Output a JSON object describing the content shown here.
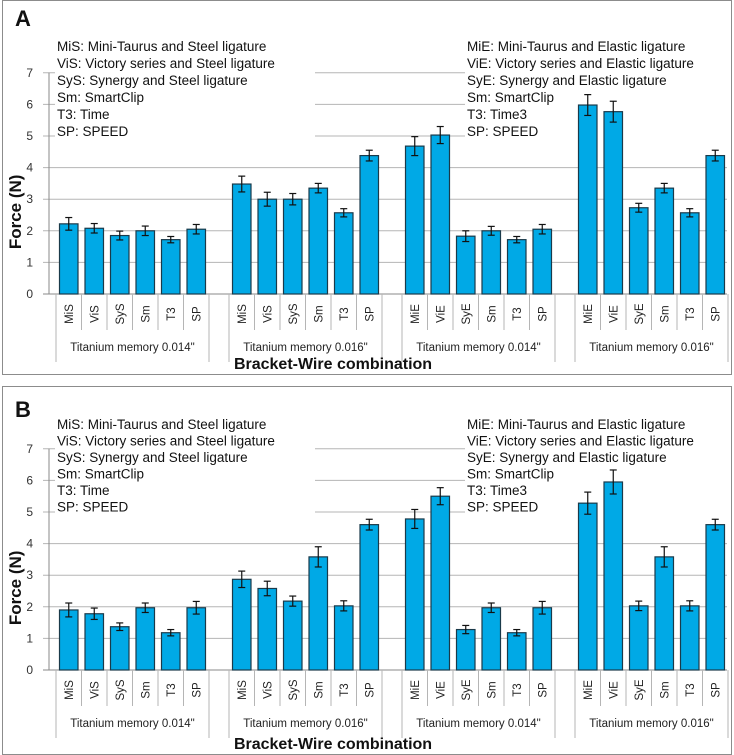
{
  "chart_data": [
    {
      "type": "bar",
      "panel_label": "A",
      "title": "",
      "xlabel": "Bracket-Wire combination",
      "ylabel": "Force (N)",
      "ylim": [
        0,
        7
      ],
      "yticks": [
        "0",
        "1",
        "2",
        "3",
        "4",
        "5",
        "6",
        "7"
      ],
      "grid": true,
      "error_bars": true,
      "bar_color": "#00a9e6",
      "legend_left": [
        "MiS: Mini-Taurus and Steel ligature",
        "ViS: Victory series and Steel ligature",
        "SyS: Synergy and Steel ligature",
        "Sm: SmartClip",
        "T3: Time",
        "SP: SPEED"
      ],
      "legend_right": [
        "MiE: Mini-Taurus and  Elastic ligature",
        "ViE: Victory series and  Elastic ligature",
        "SyE: Synergy and  Elastic ligature",
        "Sm: SmartClip",
        "T3: Time3",
        "SP: SPEED"
      ],
      "groups": [
        {
          "name": "Titanium memory 0.014\"",
          "categories": [
            "MiS",
            "ViS",
            "SyS",
            "Sm",
            "T3",
            "SP"
          ],
          "values": [
            2.22,
            2.08,
            1.85,
            2.0,
            1.72,
            2.05
          ],
          "errors": [
            0.2,
            0.15,
            0.14,
            0.15,
            0.1,
            0.15
          ]
        },
        {
          "name": "Titanium memory 0.016\"",
          "categories": [
            "MiS",
            "ViS",
            "SyS",
            "Sm",
            "T3",
            "SP"
          ],
          "values": [
            3.48,
            3.0,
            3.0,
            3.35,
            2.57,
            4.38
          ],
          "errors": [
            0.25,
            0.22,
            0.18,
            0.15,
            0.13,
            0.17
          ]
        },
        {
          "name": "Titanium memory 0.014\"",
          "categories": [
            "MiE",
            "ViE",
            "SyE",
            "Sm",
            "T3",
            "SP"
          ],
          "values": [
            4.68,
            5.03,
            1.83,
            2.0,
            1.72,
            2.05
          ],
          "errors": [
            0.3,
            0.27,
            0.17,
            0.14,
            0.1,
            0.15
          ]
        },
        {
          "name": "Titanium memory 0.016\"",
          "categories": [
            "MiE",
            "ViE",
            "SyE",
            "Sm",
            "T3",
            "SP"
          ],
          "values": [
            5.98,
            5.77,
            2.73,
            3.35,
            2.57,
            4.38
          ],
          "errors": [
            0.33,
            0.33,
            0.14,
            0.15,
            0.13,
            0.17
          ]
        }
      ]
    },
    {
      "type": "bar",
      "panel_label": "B",
      "title": "",
      "xlabel": "Bracket-Wire combination",
      "ylabel": "Force (N)",
      "ylim": [
        0,
        7
      ],
      "yticks": [
        "0",
        "1",
        "2",
        "3",
        "4",
        "5",
        "6",
        "7"
      ],
      "grid": true,
      "error_bars": true,
      "bar_color": "#00a9e6",
      "legend_left": [
        "MiS: Mini-Taurus and Steel ligature",
        "ViS: Victory series and Steel ligature",
        "SyS: Synergy and Steel ligature",
        "Sm: SmartClip",
        "T3: Time",
        "SP: SPEED"
      ],
      "legend_right": [
        "MiE: Mini-Taurus and  Elastic ligature",
        "ViE: Victory series and  Elastic ligature",
        "SyE: Synergy and  Elastic ligature",
        "Sm: SmartClip",
        "T3: Time3",
        "SP: SPEED"
      ],
      "groups": [
        {
          "name": "Titanium memory 0.014\"",
          "categories": [
            "MiS",
            "ViS",
            "SyS",
            "Sm",
            "T3",
            "SP"
          ],
          "values": [
            1.9,
            1.78,
            1.37,
            1.97,
            1.18,
            1.97
          ],
          "errors": [
            0.22,
            0.18,
            0.12,
            0.15,
            0.1,
            0.2
          ]
        },
        {
          "name": "Titanium memory 0.016\"",
          "categories": [
            "MiS",
            "ViS",
            "SyS",
            "Sm",
            "T3",
            "SP"
          ],
          "values": [
            2.87,
            2.58,
            2.18,
            3.58,
            2.03,
            4.6
          ],
          "errors": [
            0.26,
            0.23,
            0.16,
            0.32,
            0.16,
            0.17
          ]
        },
        {
          "name": "Titanium memory 0.014\"",
          "categories": [
            "MiE",
            "ViE",
            "SyE",
            "Sm",
            "T3",
            "SP"
          ],
          "values": [
            4.78,
            5.5,
            1.28,
            1.97,
            1.18,
            1.97
          ],
          "errors": [
            0.3,
            0.27,
            0.13,
            0.15,
            0.1,
            0.2
          ]
        },
        {
          "name": "Titanium memory 0.016\"",
          "categories": [
            "MiE",
            "ViE",
            "SyE",
            "Sm",
            "T3",
            "SP"
          ],
          "values": [
            5.28,
            5.95,
            2.03,
            3.58,
            2.03,
            4.6
          ],
          "errors": [
            0.35,
            0.38,
            0.15,
            0.32,
            0.16,
            0.17
          ]
        }
      ]
    }
  ]
}
